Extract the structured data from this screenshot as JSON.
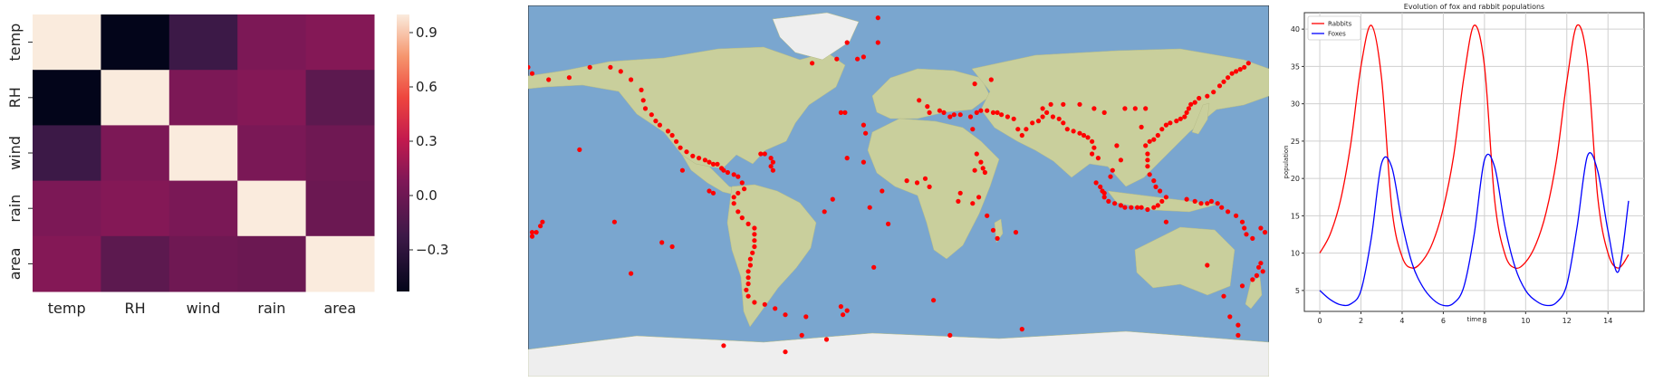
{
  "chart_data": [
    {
      "type": "heatmap",
      "title": "",
      "rows": [
        "temp",
        "RH",
        "wind",
        "rain",
        "area"
      ],
      "cols": [
        "temp",
        "RH",
        "wind",
        "rain",
        "area"
      ],
      "values": [
        [
          1.0,
          -0.53,
          -0.23,
          0.07,
          0.1
        ],
        [
          -0.53,
          1.0,
          0.07,
          0.1,
          -0.08
        ],
        [
          -0.23,
          0.07,
          1.0,
          0.06,
          0.01
        ],
        [
          0.07,
          0.1,
          0.06,
          1.0,
          -0.01
        ],
        [
          0.1,
          -0.08,
          0.01,
          -0.01,
          1.0
        ]
      ],
      "colorbar": {
        "min": -0.53,
        "max": 1.0,
        "ticks": [
          "0.9",
          "0.6",
          "0.3",
          "0.0",
          "−0.3"
        ],
        "tick_values": [
          0.9,
          0.6,
          0.3,
          0.0,
          -0.3
        ]
      }
    },
    {
      "type": "scatter",
      "title": "",
      "map": "world",
      "marker_color": "#ff0000",
      "points": [
        [
          -178,
          57
        ],
        [
          -170,
          54
        ],
        [
          -160,
          55
        ],
        [
          -150,
          60
        ],
        [
          -140,
          60
        ],
        [
          -135,
          58
        ],
        [
          -130,
          54
        ],
        [
          -125,
          49
        ],
        [
          -124,
          44
        ],
        [
          -123,
          40
        ],
        [
          -120,
          37
        ],
        [
          -118,
          34
        ],
        [
          -116,
          32
        ],
        [
          -112,
          29
        ],
        [
          -110,
          27
        ],
        [
          -108,
          24
        ],
        [
          -106,
          21
        ],
        [
          -103,
          19
        ],
        [
          -100,
          17
        ],
        [
          -97,
          16
        ],
        [
          -94,
          15
        ],
        [
          -92,
          14
        ],
        [
          -90,
          13
        ],
        [
          -88,
          13
        ],
        [
          -86,
          11
        ],
        [
          -85,
          10
        ],
        [
          -83,
          9
        ],
        [
          -80,
          8
        ],
        [
          -78,
          7
        ],
        [
          -76,
          4
        ],
        [
          -75,
          1
        ],
        [
          -78,
          -1
        ],
        [
          -80,
          -3
        ],
        [
          -80,
          -6
        ],
        [
          -78,
          -10
        ],
        [
          -76,
          -13
        ],
        [
          -73,
          -16
        ],
        [
          -70,
          -18
        ],
        [
          -70,
          -21
        ],
        [
          -70,
          -24
        ],
        [
          -70,
          -27
        ],
        [
          -71,
          -30
        ],
        [
          -72,
          -33
        ],
        [
          -72,
          -36
        ],
        [
          -73,
          -39
        ],
        [
          -73,
          -42
        ],
        [
          -73,
          -45
        ],
        [
          -74,
          -48
        ],
        [
          -73,
          -51
        ],
        [
          -70,
          -54
        ],
        [
          -65,
          -55
        ],
        [
          -60,
          -57
        ],
        [
          -55,
          -60
        ],
        [
          -45,
          -61
        ],
        [
          -28,
          -56
        ],
        [
          -25,
          -58
        ],
        [
          -27,
          -60
        ],
        [
          -62,
          16
        ],
        [
          -61,
          14
        ],
        [
          -62,
          12
        ],
        [
          -61,
          10
        ],
        [
          -65,
          18
        ],
        [
          -67,
          18
        ],
        [
          -42,
          62
        ],
        [
          -30,
          64
        ],
        [
          -20,
          64
        ],
        [
          -17,
          65
        ],
        [
          -25,
          72
        ],
        [
          -10,
          72
        ],
        [
          -28,
          38
        ],
        [
          -26,
          38
        ],
        [
          -17,
          32
        ],
        [
          -16,
          28
        ],
        [
          -25,
          16
        ],
        [
          -14,
          -8
        ],
        [
          -5,
          -16
        ],
        [
          -12,
          -37
        ],
        [
          -32,
          -4
        ],
        [
          -36,
          -10
        ],
        [
          10,
          44
        ],
        [
          14,
          41
        ],
        [
          15,
          38
        ],
        [
          20,
          39
        ],
        [
          22,
          38
        ],
        [
          25,
          36
        ],
        [
          27,
          37
        ],
        [
          30,
          37
        ],
        [
          35,
          36
        ],
        [
          38,
          38
        ],
        [
          40,
          39
        ],
        [
          43,
          39
        ],
        [
          46,
          38
        ],
        [
          48,
          38
        ],
        [
          50,
          37
        ],
        [
          53,
          36
        ],
        [
          56,
          35
        ],
        [
          58,
          30
        ],
        [
          60,
          27
        ],
        [
          62,
          30
        ],
        [
          65,
          33
        ],
        [
          68,
          34
        ],
        [
          70,
          36
        ],
        [
          72,
          38
        ],
        [
          75,
          36
        ],
        [
          78,
          35
        ],
        [
          80,
          33
        ],
        [
          82,
          30
        ],
        [
          85,
          29
        ],
        [
          88,
          28
        ],
        [
          90,
          27
        ],
        [
          92,
          26
        ],
        [
          94,
          24
        ],
        [
          95,
          21
        ],
        [
          94,
          18
        ],
        [
          97,
          16
        ],
        [
          36,
          30
        ],
        [
          38,
          18
        ],
        [
          40,
          14
        ],
        [
          41,
          11
        ],
        [
          42,
          9
        ],
        [
          37,
          10
        ],
        [
          39,
          -3
        ],
        [
          36,
          -6
        ],
        [
          30,
          -1
        ],
        [
          29,
          -5
        ],
        [
          43,
          -12
        ],
        [
          46,
          -19
        ],
        [
          48,
          -23
        ],
        [
          57,
          -20
        ],
        [
          17,
          -53
        ],
        [
          -8,
          0
        ],
        [
          9,
          4
        ],
        [
          13,
          6
        ],
        [
          4,
          5
        ],
        [
          -17,
          14
        ],
        [
          15,
          2
        ],
        [
          100,
          -3
        ],
        [
          102,
          -5
        ],
        [
          105,
          -6
        ],
        [
          108,
          -7
        ],
        [
          110,
          -8
        ],
        [
          113,
          -8
        ],
        [
          116,
          -8
        ],
        [
          118,
          -8
        ],
        [
          121,
          -9
        ],
        [
          124,
          -8
        ],
        [
          126,
          -7
        ],
        [
          128,
          -5
        ],
        [
          130,
          -3
        ],
        [
          127,
          0
        ],
        [
          125,
          2
        ],
        [
          124,
          5
        ],
        [
          122,
          8
        ],
        [
          121,
          12
        ],
        [
          121,
          15
        ],
        [
          121,
          18
        ],
        [
          120,
          22
        ],
        [
          122,
          24
        ],
        [
          124,
          25
        ],
        [
          126,
          27
        ],
        [
          128,
          30
        ],
        [
          130,
          32
        ],
        [
          132,
          33
        ],
        [
          135,
          34
        ],
        [
          137,
          35
        ],
        [
          139,
          36
        ],
        [
          140,
          38
        ],
        [
          141,
          40
        ],
        [
          142,
          42
        ],
        [
          144,
          43
        ],
        [
          146,
          45
        ],
        [
          150,
          46
        ],
        [
          153,
          48
        ],
        [
          156,
          51
        ],
        [
          158,
          53
        ],
        [
          160,
          55
        ],
        [
          162,
          57
        ],
        [
          164,
          58
        ],
        [
          166,
          59
        ],
        [
          168,
          60
        ],
        [
          170,
          62
        ],
        [
          140,
          -4
        ],
        [
          144,
          -5
        ],
        [
          147,
          -6
        ],
        [
          150,
          -6
        ],
        [
          152,
          -5
        ],
        [
          155,
          -6
        ],
        [
          157,
          -8
        ],
        [
          160,
          -10
        ],
        [
          164,
          -12
        ],
        [
          167,
          -15
        ],
        [
          168,
          -18
        ],
        [
          169,
          -21
        ],
        [
          172,
          -23
        ],
        [
          176,
          -18
        ],
        [
          178,
          -20
        ],
        [
          -178,
          -22
        ],
        [
          -176,
          -20
        ],
        [
          -174,
          -17
        ],
        [
          -173,
          -15
        ],
        [
          176,
          -35
        ],
        [
          175,
          -37
        ],
        [
          177,
          -39
        ],
        [
          174,
          -41
        ],
        [
          172,
          -43
        ],
        [
          167,
          -46
        ],
        [
          161,
          -61
        ],
        [
          165,
          -65
        ],
        [
          158,
          -51
        ],
        [
          96,
          4
        ],
        [
          98,
          2
        ],
        [
          99,
          0
        ],
        [
          100,
          -1
        ],
        [
          103,
          7
        ],
        [
          104,
          10
        ],
        [
          108,
          15
        ],
        [
          106,
          22
        ],
        [
          118,
          31
        ],
        [
          110,
          40
        ],
        [
          115,
          40
        ],
        [
          120,
          40
        ],
        [
          95,
          40
        ],
        [
          100,
          38
        ],
        [
          88,
          42
        ],
        [
          80,
          42
        ],
        [
          74,
          42
        ],
        [
          70,
          40
        ],
        [
          150,
          -36
        ],
        [
          130,
          -15
        ],
        [
          -180,
          60
        ],
        [
          -178,
          -20
        ],
        [
          -155,
          20
        ],
        [
          -138,
          -15
        ],
        [
          -115,
          -25
        ],
        [
          -110,
          -27
        ],
        [
          -90,
          -1
        ],
        [
          -92,
          0
        ],
        [
          -105,
          10
        ],
        [
          -130,
          -40
        ],
        [
          -35,
          -72
        ],
        [
          -55,
          -78
        ],
        [
          -85,
          -75
        ],
        [
          25,
          -70
        ],
        [
          60,
          -67
        ],
        [
          -10,
          84
        ],
        [
          37,
          52
        ],
        [
          45,
          54
        ],
        [
          -47,
          -70
        ],
        [
          165,
          -70
        ]
      ]
    },
    {
      "type": "line",
      "title": "Evolution of fox and rabbit populations",
      "xlabel": "time",
      "ylabel": "population",
      "xlim": [
        -0.75,
        15.75
      ],
      "ylim": [
        2.2,
        42.2
      ],
      "xticks": [
        0,
        2,
        4,
        6,
        8,
        10,
        12,
        14
      ],
      "yticks": [
        5,
        10,
        15,
        20,
        25,
        30,
        35,
        40
      ],
      "grid": true,
      "legend": "top-left",
      "x": [
        0.0,
        0.5,
        1.0,
        1.5,
        2.0,
        2.5,
        3.0,
        3.5,
        4.0,
        4.5,
        5.0,
        5.5,
        6.0,
        6.5,
        7.0,
        7.5,
        8.0,
        8.5,
        9.0,
        9.5,
        10.0,
        10.5,
        11.0,
        11.5,
        12.0,
        12.5,
        13.0,
        13.5,
        14.0,
        14.5,
        15.0
      ],
      "series": [
        {
          "name": "Rabbits",
          "color": "#ff0000",
          "values": [
            10.0,
            12.5,
            17.0,
            24.5,
            35.0,
            40.5,
            33.5,
            16.0,
            9.5,
            8.0,
            9.0,
            11.5,
            16.0,
            23.0,
            33.5,
            40.5,
            35.0,
            17.0,
            9.8,
            8.0,
            8.8,
            11.2,
            15.5,
            22.5,
            33.0,
            40.5,
            35.5,
            17.5,
            10.0,
            8.0,
            9.8
          ]
        },
        {
          "name": "Foxes",
          "color": "#0000ff",
          "values": [
            5.0,
            3.8,
            3.1,
            3.2,
            5.0,
            12.0,
            22.0,
            21.5,
            14.0,
            8.5,
            5.5,
            3.8,
            3.0,
            3.3,
            5.5,
            12.5,
            22.5,
            21.5,
            13.5,
            8.0,
            5.0,
            3.6,
            3.0,
            3.4,
            5.8,
            13.5,
            23.0,
            21.0,
            13.0,
            7.5,
            17.0
          ]
        }
      ]
    }
  ]
}
